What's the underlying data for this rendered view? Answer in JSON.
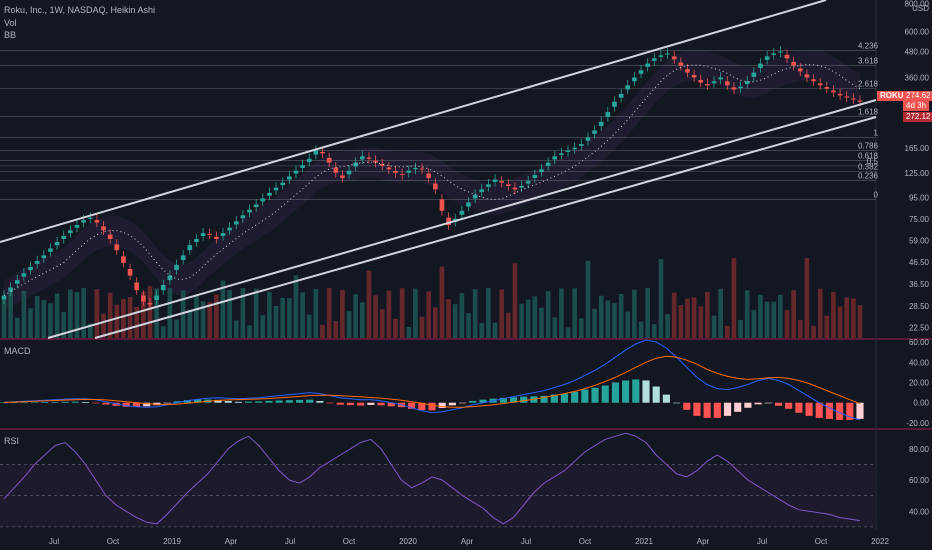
{
  "header": {
    "symbol_line": "Roku, Inc., 1W, NASDAQ, Heikin Ashi",
    "indicator_vol": "Vol",
    "indicator_bb": "BB"
  },
  "price_axis": {
    "labels": [
      "800.00",
      "USD",
      "600.00",
      "480.00",
      "360.00",
      "165.00",
      "125.00",
      "95.00",
      "75.00",
      "59.00",
      "46.50",
      "36.50",
      "28.50",
      "22.50"
    ]
  },
  "price_tags": {
    "symbol": "ROKU",
    "last_price": "274.62",
    "countdown": "4d 3h",
    "ma_value": "272.12"
  },
  "fib_labels": [
    "4.236",
    "3.618",
    "2.618",
    "1.618",
    "1",
    "0.786",
    "0.618",
    "0.5",
    "0.382",
    "0.236",
    "0"
  ],
  "macd_panel": {
    "title": "MACD",
    "ticks": [
      "60.00",
      "40.00",
      "20.00",
      "0.00",
      "-20.00"
    ]
  },
  "rsi_panel": {
    "title": "RSI",
    "ticks": [
      "80.00",
      "60.00",
      "40.00"
    ]
  },
  "time_axis": {
    "labels": [
      "Jul",
      "Oct",
      "2019",
      "Apr",
      "Jul",
      "Oct",
      "2020",
      "Apr",
      "Jul",
      "Oct",
      "2021",
      "Apr",
      "Jul",
      "Oct",
      "2022"
    ]
  },
  "colors": {
    "background": "#131722",
    "up": "#26a69a",
    "down": "#ef5350",
    "macd_line": "#2962ff",
    "signal_line": "#ff6d00",
    "rsi_line": "#7e57c2",
    "channel": "#d1d4dc"
  },
  "chart_data": [
    {
      "type": "candlestick",
      "title": "Roku, Inc., 1W, NASDAQ, Heikin Ashi",
      "scale": "log",
      "ylim": [
        20,
        850
      ],
      "close": [
        32,
        35,
        38,
        41,
        44,
        47,
        50,
        54,
        58,
        62,
        66,
        70,
        74,
        76,
        72,
        66,
        60,
        53,
        46,
        40,
        34,
        30,
        29,
        32,
        36,
        40,
        45,
        50,
        56,
        60,
        64,
        63,
        60,
        64,
        68,
        73,
        78,
        83,
        88,
        94,
        100,
        106,
        112,
        120,
        128,
        136,
        146,
        160,
        155,
        140,
        125,
        118,
        128,
        140,
        150,
        146,
        140,
        135,
        130,
        125,
        122,
        128,
        132,
        130,
        118,
        104,
        82,
        70,
        75,
        82,
        90,
        98,
        104,
        110,
        116,
        112,
        108,
        104,
        108,
        114,
        122,
        130,
        140,
        150,
        155,
        160,
        165,
        172,
        185,
        200,
        220,
        245,
        275,
        300,
        330,
        360,
        390,
        420,
        445,
        460,
        470,
        440,
        410,
        380,
        360,
        340,
        330,
        345,
        360,
        330,
        315,
        325,
        345,
        380,
        420,
        455,
        470,
        480,
        445,
        410,
        385,
        360,
        345,
        330,
        318,
        305,
        295,
        288,
        282,
        275
      ],
      "last": 274.62
    },
    {
      "type": "line",
      "title": "MACD",
      "ylim": [
        -25,
        62
      ],
      "series": [
        {
          "name": "MACD",
          "values": [
            0.5,
            1,
            1.5,
            2,
            2.5,
            3,
            3.5,
            4,
            4,
            3,
            1,
            -1,
            -3,
            -4,
            -4.5,
            -4,
            -2,
            0,
            2,
            3.5,
            4.5,
            5,
            4.5,
            4,
            4.5,
            5,
            6,
            7,
            8,
            9,
            10,
            9,
            7,
            5,
            4,
            3,
            3,
            2,
            0,
            -2,
            -5,
            -8,
            -10,
            -9,
            -7,
            -5,
            -2,
            0,
            2,
            4,
            6,
            8,
            10,
            12,
            15,
            18,
            22,
            27,
            32,
            38,
            45,
            52,
            58,
            62,
            60,
            54,
            45,
            35,
            25,
            18,
            14,
            13,
            15,
            18,
            22,
            24,
            22,
            18,
            12,
            6,
            0,
            -5,
            -10,
            -14,
            -17
          ]
        },
        {
          "name": "Signal",
          "values": [
            0.3,
            0.6,
            1,
            1.4,
            1.8,
            2.2,
            2.6,
            3,
            3.3,
            3.2,
            2.8,
            2,
            1,
            0,
            -1,
            -1.6,
            -1.8,
            -1.4,
            -0.6,
            0.4,
            1.4,
            2.2,
            2.8,
            3.1,
            3.4,
            3.7,
            4.2,
            4.8,
            5.5,
            6.2,
            7,
            7.4,
            7.4,
            7,
            6.4,
            5.8,
            5.2,
            4.6,
            3.6,
            2.4,
            1,
            -0.6,
            -2.4,
            -3.8,
            -4.4,
            -4.4,
            -3.8,
            -3,
            -2,
            -0.8,
            0.6,
            2,
            3.6,
            5.2,
            7,
            9,
            11.2,
            14,
            17.2,
            21,
            25,
            30,
            35,
            40,
            44,
            46,
            45,
            42,
            38,
            33,
            29,
            26,
            24,
            23,
            23.6,
            24.6,
            25,
            24,
            22,
            19,
            15,
            11,
            7,
            3,
            -1
          ]
        }
      ],
      "histogram": [
        0.2,
        0.4,
        0.5,
        0.6,
        0.7,
        0.8,
        0.9,
        1,
        0.7,
        -0.2,
        -1.8,
        -3,
        -4,
        -4,
        -3.5,
        -2.4,
        -0.2,
        1.4,
        2.6,
        3.1,
        3.1,
        2.8,
        1.7,
        0.9,
        1.1,
        1.3,
        1.8,
        2.2,
        2.5,
        2.8,
        3,
        1.6,
        -0.4,
        -2,
        -2.4,
        -2.8,
        -2.2,
        -2.6,
        -3.6,
        -4.4,
        -6,
        -7.4,
        -7.6,
        -5.2,
        -2.6,
        -0.6,
        1.8,
        3,
        4,
        4.8,
        5.4,
        6,
        6.4,
        6.8,
        8,
        9,
        10.8,
        13,
        14.8,
        17,
        20,
        22,
        23,
        22,
        16,
        8,
        0,
        -7,
        -13,
        -15,
        -15,
        -13,
        -9,
        -5,
        -1.6,
        -0.6,
        -3,
        -6,
        -10,
        -13,
        -15,
        -16,
        -17,
        -17,
        -16
      ]
    },
    {
      "type": "line",
      "title": "RSI",
      "ylim": [
        28,
        92
      ],
      "series": [
        {
          "name": "RSI",
          "values": [
            48,
            55,
            62,
            70,
            76,
            82,
            84,
            78,
            70,
            60,
            50,
            44,
            40,
            36,
            33,
            32,
            38,
            45,
            52,
            58,
            64,
            72,
            80,
            85,
            88,
            82,
            74,
            66,
            60,
            58,
            62,
            68,
            72,
            76,
            80,
            84,
            86,
            80,
            70,
            60,
            55,
            58,
            62,
            60,
            55,
            50,
            46,
            42,
            36,
            32,
            36,
            44,
            52,
            58,
            62,
            66,
            72,
            78,
            82,
            86,
            88,
            90,
            88,
            84,
            76,
            70,
            64,
            62,
            66,
            72,
            76,
            72,
            66,
            60,
            56,
            52,
            48,
            44,
            41,
            40,
            39,
            38,
            36,
            35,
            34
          ]
        }
      ]
    }
  ]
}
